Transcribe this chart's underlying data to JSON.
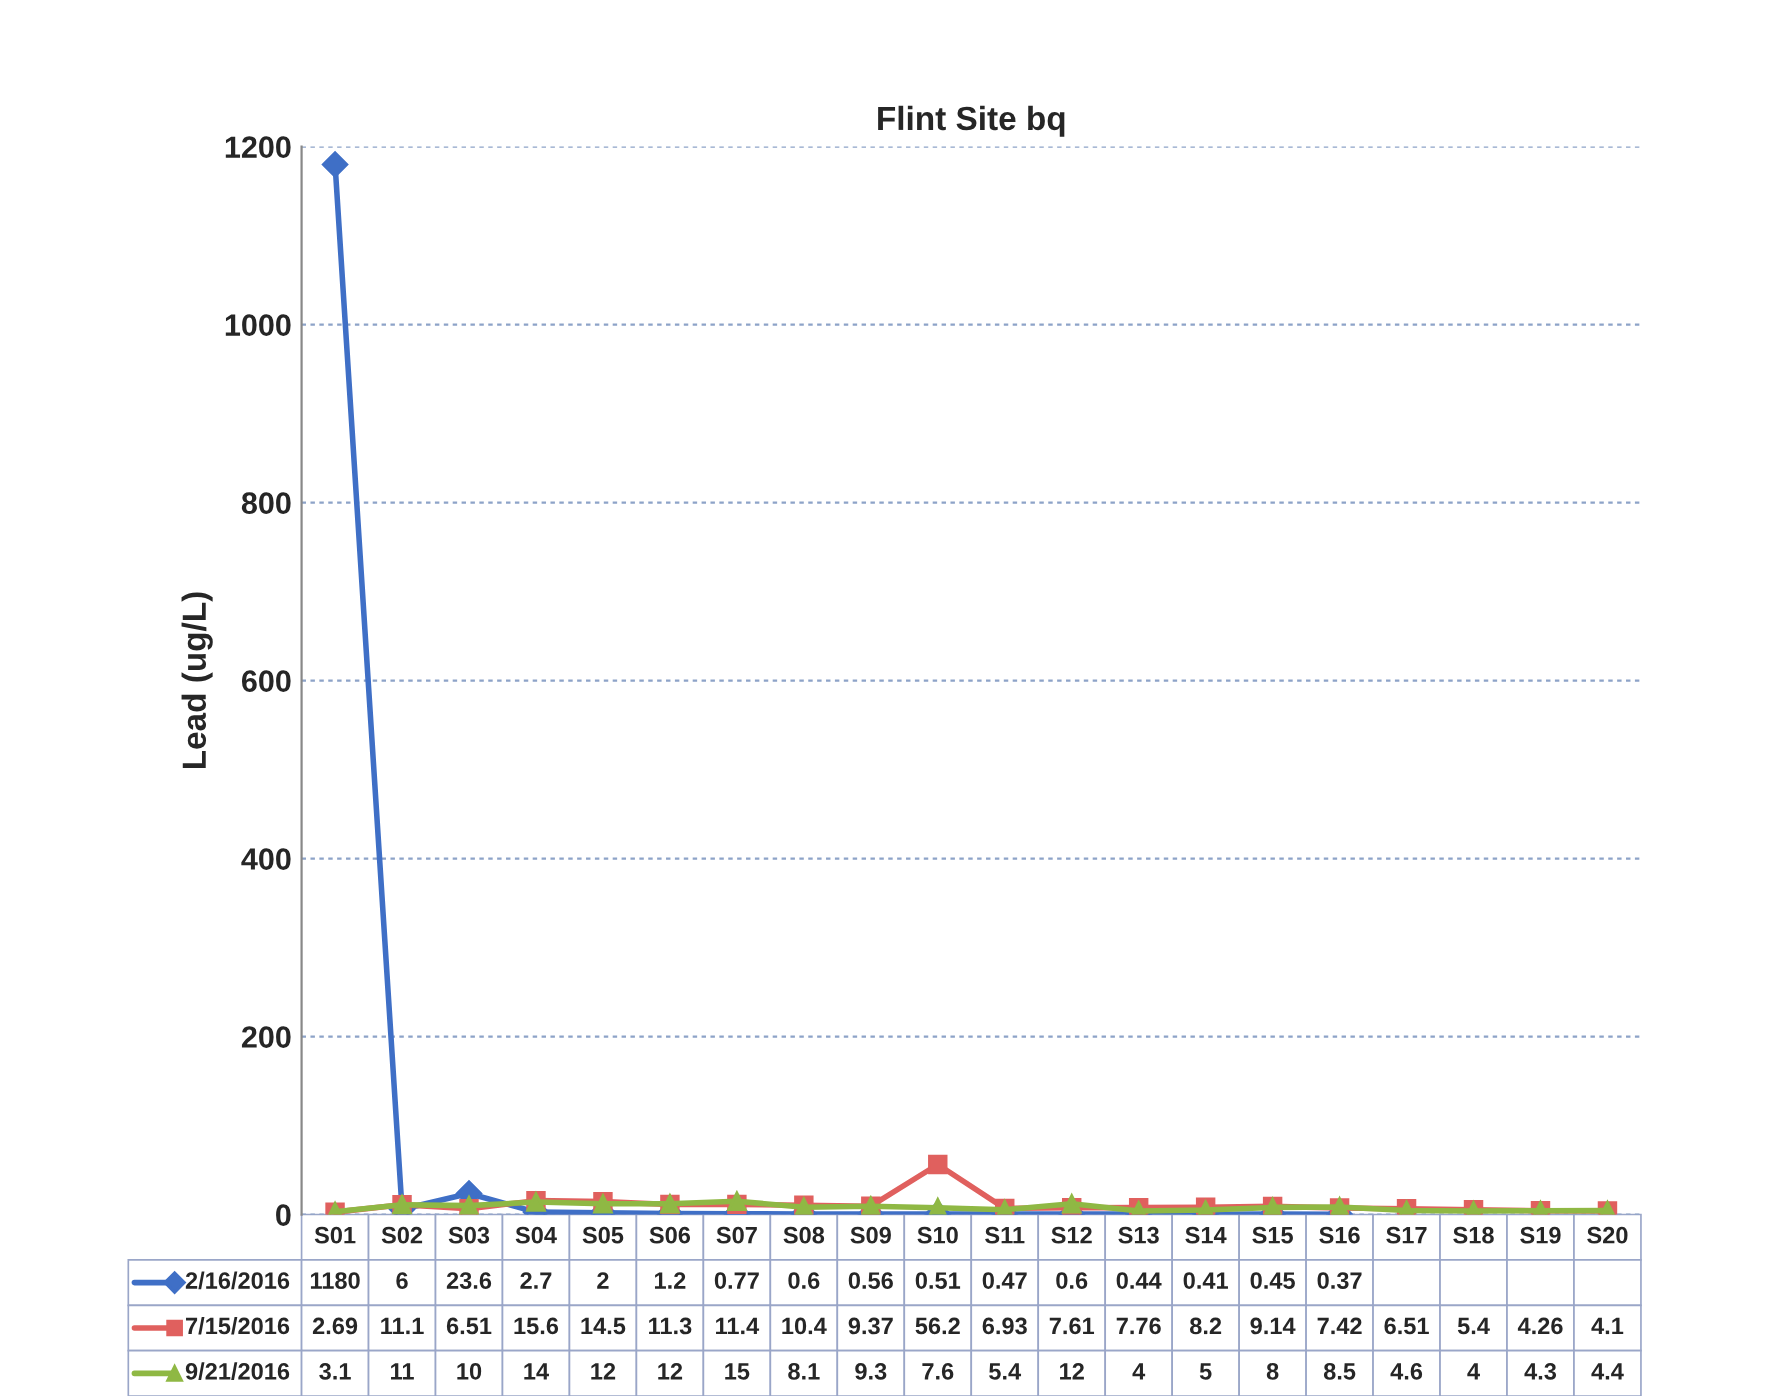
{
  "chart_data": {
    "type": "line",
    "title": "Flint Site bq",
    "ylabel": "Lead (ug/L)",
    "categories": [
      "S01",
      "S02",
      "S03",
      "S04",
      "S05",
      "S06",
      "S07",
      "S08",
      "S09",
      "S10",
      "S11",
      "S12",
      "S13",
      "S14",
      "S15",
      "S16",
      "S17",
      "S18",
      "S19",
      "S20"
    ],
    "series": [
      {
        "name": "2/16/2016",
        "color": "#3f6fc6",
        "marker": "diamond",
        "values": [
          1180,
          6,
          23.6,
          2.7,
          2,
          1.2,
          0.77,
          0.6,
          0.56,
          0.51,
          0.47,
          0.6,
          0.44,
          0.41,
          0.45,
          0.37,
          null,
          null,
          null,
          null
        ]
      },
      {
        "name": "7/15/2016",
        "color": "#e0605e",
        "marker": "square",
        "values": [
          2.69,
          11.1,
          6.51,
          15.6,
          14.5,
          11.3,
          11.4,
          10.4,
          9.37,
          56.2,
          6.93,
          7.61,
          7.76,
          8.2,
          9.14,
          7.42,
          6.51,
          5.4,
          4.26,
          4.1
        ]
      },
      {
        "name": "9/21/2016",
        "color": "#8fb844",
        "marker": "triangle",
        "values": [
          3.1,
          11,
          10,
          14,
          12,
          12,
          15,
          8.1,
          9.3,
          7.6,
          5.4,
          12,
          4,
          5,
          8,
          8.5,
          4.6,
          4,
          4.3,
          4.4
        ]
      }
    ],
    "ylim": [
      0,
      1200
    ],
    "yticks": [
      0,
      200,
      400,
      600,
      800,
      1000,
      1200
    ],
    "grid": "y",
    "legend": "bottom",
    "data_labels": true,
    "tick_labels": "y"
  }
}
